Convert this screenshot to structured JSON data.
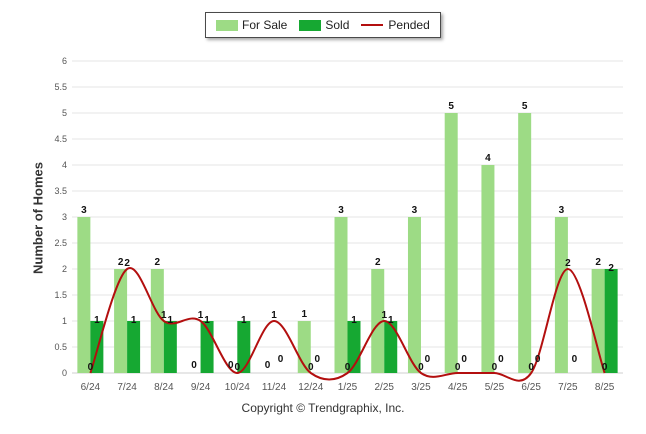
{
  "legend": {
    "for_sale": "For Sale",
    "sold": "Sold",
    "pended": "Pended"
  },
  "colors": {
    "for_sale": "#9ddb85",
    "sold": "#16a832",
    "pended": "#b30f0f",
    "grid": "#e6e6e6",
    "axis_text": "#555555",
    "data_label": "#111111"
  },
  "footer": "Copyright © Trendgraphix, Inc.",
  "chart_data": {
    "type": "bar",
    "ylabel": "Number of Homes",
    "ylim": [
      0,
      6
    ],
    "yticks": [
      "0",
      "0.5",
      "1",
      "1.5",
      "2",
      "2.5",
      "3",
      "3.5",
      "4",
      "4.5",
      "5",
      "5.5",
      "6"
    ],
    "grid": true,
    "legend_position": "top-center",
    "categories": [
      "6/24",
      "7/24",
      "8/24",
      "9/24",
      "10/24",
      "11/24",
      "12/24",
      "1/25",
      "2/25",
      "3/25",
      "4/25",
      "5/25",
      "6/25",
      "7/25",
      "8/25"
    ],
    "series": [
      {
        "name": "For Sale",
        "type": "bar",
        "values": [
          3,
          2,
          2,
          0,
          0,
          0,
          1,
          3,
          2,
          3,
          5,
          4,
          5,
          3,
          2
        ]
      },
      {
        "name": "Sold",
        "type": "bar",
        "values": [
          1,
          1,
          1,
          1,
          1,
          0,
          0,
          1,
          1,
          0,
          0,
          0,
          0,
          0,
          2
        ]
      },
      {
        "name": "Pended",
        "type": "line",
        "smooth": true,
        "values": [
          0,
          2,
          1,
          1,
          0,
          1,
          0,
          0,
          1,
          0,
          0,
          0,
          0,
          2,
          0
        ]
      }
    ]
  }
}
